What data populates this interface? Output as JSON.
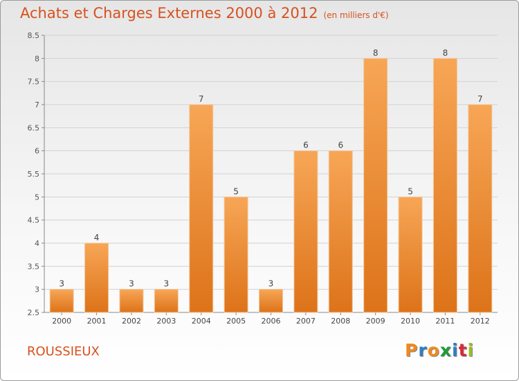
{
  "header": {
    "title": "Achats et Charges Externes 2000 à 2012",
    "unit": "(en milliers d'€)"
  },
  "footer": {
    "commune": "ROUSSIEUX",
    "brand": "Proxiti"
  },
  "colors": {
    "accent": "#d8501e",
    "bar_top": "#f7a656",
    "bar_bottom": "#dd7319",
    "brand_letters": [
      "#f08a1f",
      "#2e7fc1",
      "#f08a1f",
      "#1f9a3b",
      "#2e7fc1",
      "#d62b3b",
      "#9bbd22"
    ]
  },
  "chart_data": {
    "type": "bar",
    "title": "Achats et Charges Externes 2000 à 2012",
    "subtitle": "(en milliers d'€)",
    "xlabel": "",
    "ylabel": "",
    "categories": [
      "2000",
      "2001",
      "2002",
      "2003",
      "2004",
      "2005",
      "2006",
      "2007",
      "2008",
      "2009",
      "2010",
      "2011",
      "2012"
    ],
    "values": [
      3,
      4,
      3,
      3,
      7,
      5,
      3,
      6,
      6,
      8,
      5,
      8,
      7
    ],
    "ylim": [
      2.5,
      8.5
    ],
    "yticks": [
      "2.5",
      "3",
      "3.5",
      "4",
      "4.5",
      "5",
      "5.5",
      "6",
      "6.5",
      "7",
      "7.5",
      "8",
      "8.5"
    ],
    "grid": true,
    "legend": "none"
  }
}
